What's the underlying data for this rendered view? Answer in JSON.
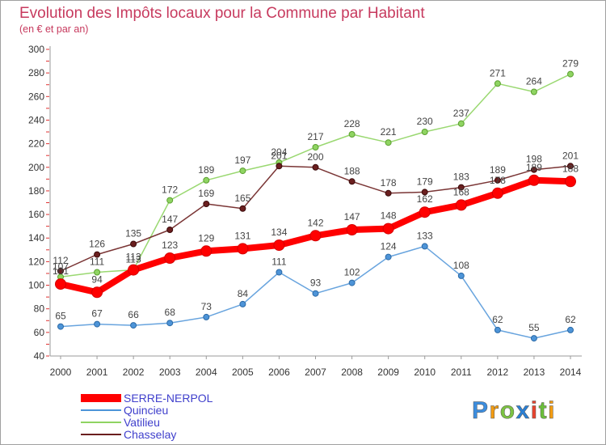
{
  "chart_data": {
    "type": "line",
    "title": "Evolution des Impôts locaux pour la Commune par Habitant",
    "subtitle": "(en € et par an)",
    "categories": [
      "2000",
      "2001",
      "2002",
      "2003",
      "2004",
      "2005",
      "2006",
      "2007",
      "2008",
      "2009",
      "2010",
      "2011",
      "2012",
      "2013",
      "2014"
    ],
    "ylim": [
      40,
      300
    ],
    "yticks": [
      40,
      60,
      80,
      100,
      120,
      140,
      160,
      180,
      200,
      220,
      240,
      260,
      280,
      300
    ],
    "grid": false,
    "legend": "bottom-left",
    "series": [
      {
        "name": "SERRE-NERPOL",
        "color": "#ff0000",
        "values": [
          101,
          94,
          113,
          123,
          129,
          131,
          134,
          142,
          147,
          148,
          162,
          168,
          178,
          189,
          188
        ]
      },
      {
        "name": "Quincieu",
        "color": "#4d94d8",
        "values": [
          65,
          67,
          66,
          68,
          73,
          84,
          111,
          93,
          102,
          124,
          133,
          108,
          62,
          55,
          62
        ]
      },
      {
        "name": "Vatilieu",
        "color": "#8fd462",
        "values": [
          107,
          111,
          113,
          172,
          189,
          197,
          204,
          217,
          228,
          221,
          230,
          237,
          271,
          264,
          279
        ]
      },
      {
        "name": "Chasselay",
        "color": "#6b1f1f",
        "values": [
          112,
          126,
          135,
          147,
          169,
          165,
          201,
          200,
          188,
          178,
          179,
          183,
          189,
          198,
          201
        ]
      }
    ]
  },
  "logo": {
    "letters": [
      "P",
      "r",
      "o",
      "x",
      "i",
      "t",
      "i"
    ],
    "colors": [
      "#3c8dde",
      "#f39c12",
      "#7cc242",
      "#2a7fd4",
      "#e8432e",
      "#6bbf3a",
      "#f39c12"
    ]
  }
}
